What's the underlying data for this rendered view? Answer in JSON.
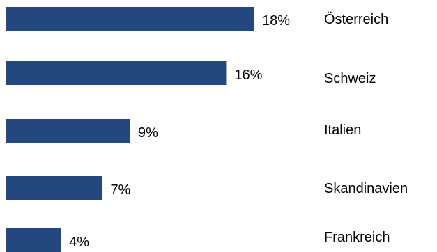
{
  "chart_data": {
    "type": "bar",
    "orientation": "horizontal",
    "categories": [
      "Österreich",
      "Schweiz",
      "Italien",
      "Skandinavien",
      "Frankreich"
    ],
    "values": [
      18,
      16,
      9,
      7,
      4
    ],
    "value_labels": [
      "18%",
      "16%",
      "9%",
      "7%",
      "4%"
    ],
    "unit": "%",
    "bar_color": "#24477f",
    "xlim": [
      0,
      18
    ],
    "grid": false,
    "legend": "none",
    "title": "",
    "xlabel": "",
    "ylabel": ""
  }
}
